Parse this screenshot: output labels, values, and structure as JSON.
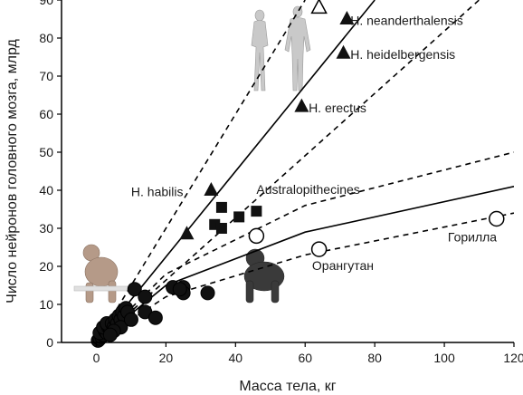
{
  "chart_data": {
    "type": "scatter",
    "xlabel": "Масса тела, кг",
    "ylabel": "Число нейронов головного мозга, млрд",
    "xlim": [
      -10,
      120
    ],
    "ylim": [
      0,
      90
    ],
    "xticks": [
      0,
      20,
      40,
      60,
      80,
      100,
      120
    ],
    "yticks": [
      0,
      10,
      20,
      30,
      40,
      50,
      60,
      70,
      80,
      90
    ],
    "xtick_labels": [
      "0",
      "20",
      "40",
      "60",
      "80",
      "100",
      "120"
    ],
    "ytick_labels": [
      "0",
      "10",
      "20",
      "30",
      "40",
      "50",
      "60",
      "70",
      "80",
      "90"
    ],
    "grid": false,
    "series": [
      {
        "marker": "filled-circle",
        "points": [
          [
            0.5,
            0.5
          ],
          [
            1,
            1
          ],
          [
            1.5,
            1.5
          ],
          [
            2,
            2
          ],
          [
            1,
            2.5
          ],
          [
            2.5,
            3
          ],
          [
            3,
            2.5
          ],
          [
            2,
            4
          ],
          [
            3.5,
            4
          ],
          [
            4,
            3.5
          ],
          [
            3,
            5
          ],
          [
            4.5,
            5
          ],
          [
            5,
            4
          ],
          [
            5.5,
            6
          ],
          [
            6,
            5
          ],
          [
            6.5,
            7
          ],
          [
            7,
            6
          ],
          [
            7.5,
            8
          ],
          [
            8,
            7
          ],
          [
            8.5,
            9
          ],
          [
            9,
            8
          ],
          [
            7,
            4
          ],
          [
            5,
            3
          ],
          [
            4,
            2
          ],
          [
            10,
            6
          ],
          [
            11,
            14
          ],
          [
            14,
            8
          ],
          [
            14,
            12
          ],
          [
            17,
            6.5
          ],
          [
            22,
            14.5
          ],
          [
            25,
            14.5
          ],
          [
            25,
            13
          ],
          [
            24,
            14
          ],
          [
            32,
            13
          ]
        ]
      },
      {
        "marker": "filled-square",
        "points": [
          [
            36,
            35.5
          ],
          [
            34,
            31
          ],
          [
            36,
            30
          ],
          [
            41,
            33
          ],
          [
            46,
            34.5
          ]
        ]
      },
      {
        "marker": "filled-triangle",
        "points": [
          [
            26,
            28.5
          ],
          [
            33,
            40
          ],
          [
            59,
            62
          ],
          [
            71,
            76
          ],
          [
            72,
            85
          ]
        ]
      },
      {
        "marker": "open-triangle",
        "points": [
          [
            64,
            88
          ]
        ]
      },
      {
        "marker": "open-circle",
        "points": [
          [
            46,
            28
          ],
          [
            64,
            24.5
          ],
          [
            115,
            32.5
          ]
        ]
      }
    ],
    "lines": [
      {
        "style": "solid",
        "points": [
          [
            0,
            0
          ],
          [
            80,
            90
          ]
        ]
      },
      {
        "style": "dashed",
        "points": [
          [
            0,
            0
          ],
          [
            60,
            90
          ]
        ]
      },
      {
        "style": "dashed",
        "points": [
          [
            0,
            0
          ],
          [
            110,
            90
          ]
        ]
      },
      {
        "style": "solid",
        "points": [
          [
            0,
            0
          ],
          [
            20,
            15
          ],
          [
            60,
            29
          ],
          [
            120,
            41
          ]
        ]
      },
      {
        "style": "dashed",
        "points": [
          [
            0,
            0
          ],
          [
            20,
            18
          ],
          [
            60,
            36
          ],
          [
            120,
            50
          ]
        ]
      },
      {
        "style": "dashed",
        "points": [
          [
            0,
            0
          ],
          [
            20,
            12
          ],
          [
            60,
            23
          ],
          [
            120,
            34
          ]
        ]
      }
    ],
    "annotations": [
      {
        "text": "H. neanderthalensis",
        "x": 73,
        "y": 83.5
      },
      {
        "text": "H. heidelbergensis",
        "x": 73,
        "y": 74.5
      },
      {
        "text": "H. erectus",
        "x": 61,
        "y": 60.5
      },
      {
        "text": "H. habilis",
        "x": 10,
        "y": 38.5
      },
      {
        "text": "Australopithecines",
        "x": 46,
        "y": 39
      },
      {
        "text": "Горилла",
        "x": 101,
        "y": 26.5
      },
      {
        "text": "Орангутан",
        "x": 62,
        "y": 19
      }
    ]
  },
  "images": {
    "humans_icon": "humans-illustration",
    "macaque_icon": "macaque-illustration",
    "chimp_icon": "chimpanzee-illustration"
  }
}
